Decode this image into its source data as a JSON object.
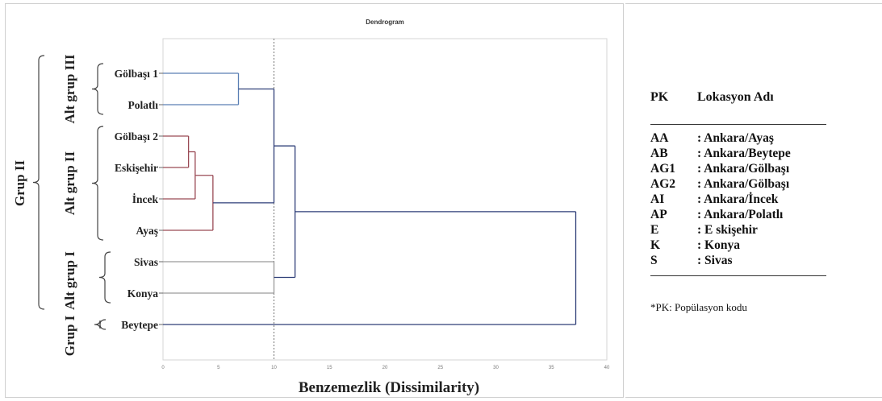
{
  "chart_data": {
    "type": "dendrogram",
    "title": "Dendrogram",
    "xlabel": "Benzemezlik (Dissimilarity)",
    "xlim": [
      0,
      40
    ],
    "x_ticks": [
      0,
      5,
      10,
      15,
      20,
      25,
      30,
      35,
      40
    ],
    "cutoff_line": 10,
    "leaves": [
      "Gölbaşı 1",
      "Polatlı",
      "Gölbaşı 2",
      "Eskişehir",
      "İncek",
      "Ayaş",
      "Sivas",
      "Konya",
      "Beytepe"
    ],
    "merges": [
      {
        "left": "Gölbaşı 2",
        "right": "Eskişehir",
        "height": 2.3,
        "color": "#9a4a55"
      },
      {
        "left": "Gölbaşı 2|Eskişehir",
        "right": "İncek",
        "height": 2.9,
        "color": "#9a4a55"
      },
      {
        "left": "Gölbaşı 2|Eskişehir|İncek",
        "right": "Ayaş",
        "height": 4.5,
        "color": "#9a4a55"
      },
      {
        "left": "Gölbaşı 1",
        "right": "Polatlı",
        "height": 6.8,
        "color": "#5a7fb5"
      },
      {
        "left": "Gölbaşı 1|Polatlı",
        "right": "Gölbaşı 2|Eskişehir|İncek|Ayaş",
        "height": 10.0,
        "color": "#2f3f78"
      },
      {
        "left": "Sivas",
        "right": "Konya",
        "height": 10.0,
        "color": "#9a9a9a"
      },
      {
        "left": "Alt grup III|Alt grup II",
        "right": "Alt grup I",
        "height": 11.9,
        "color": "#2f3f78"
      },
      {
        "left": "Grup II",
        "right": "Beytepe",
        "height": 37.2,
        "color": "#2f3f78"
      }
    ],
    "groups": [
      {
        "label": "Alt grup III",
        "members": [
          "Gölbaşı 1",
          "Polatlı"
        ]
      },
      {
        "label": "Alt grup II",
        "members": [
          "Gölbaşı 2",
          "Eskişehir",
          "İncek",
          "Ayaş"
        ]
      },
      {
        "label": "Alt grup I",
        "members": [
          "Sivas",
          "Konya"
        ]
      },
      {
        "label": "Grup I",
        "members": [
          "Beytepe"
        ]
      },
      {
        "label": "Grup II",
        "members": [
          "Gölbaşı 1",
          "Polatlı",
          "Gölbaşı 2",
          "Eskişehir",
          "İncek",
          "Ayaş",
          "Sivas",
          "Konya"
        ]
      }
    ]
  },
  "legend": {
    "col_code": "PK",
    "col_name": "Lokasyon Adı",
    "rows": [
      {
        "code": "AA",
        "name": ": Ankara/Ayaş"
      },
      {
        "code": "AB",
        "name": ": Ankara/Beytepe"
      },
      {
        "code": "AG1",
        "name": ": Ankara/Gölbaşı"
      },
      {
        "code": "AG2",
        "name": ": Ankara/Gölbaşı"
      },
      {
        "code": "AI",
        "name": ": Ankara/İncek"
      },
      {
        "code": "AP",
        "name": ": Ankara/Polatlı"
      },
      {
        "code": "E",
        "name": ": E skişehir"
      },
      {
        "code": "K",
        "name": ": Konya"
      },
      {
        "code": "S",
        "name": ": Sivas"
      }
    ],
    "note": "*PK: Popülasyon kodu"
  }
}
